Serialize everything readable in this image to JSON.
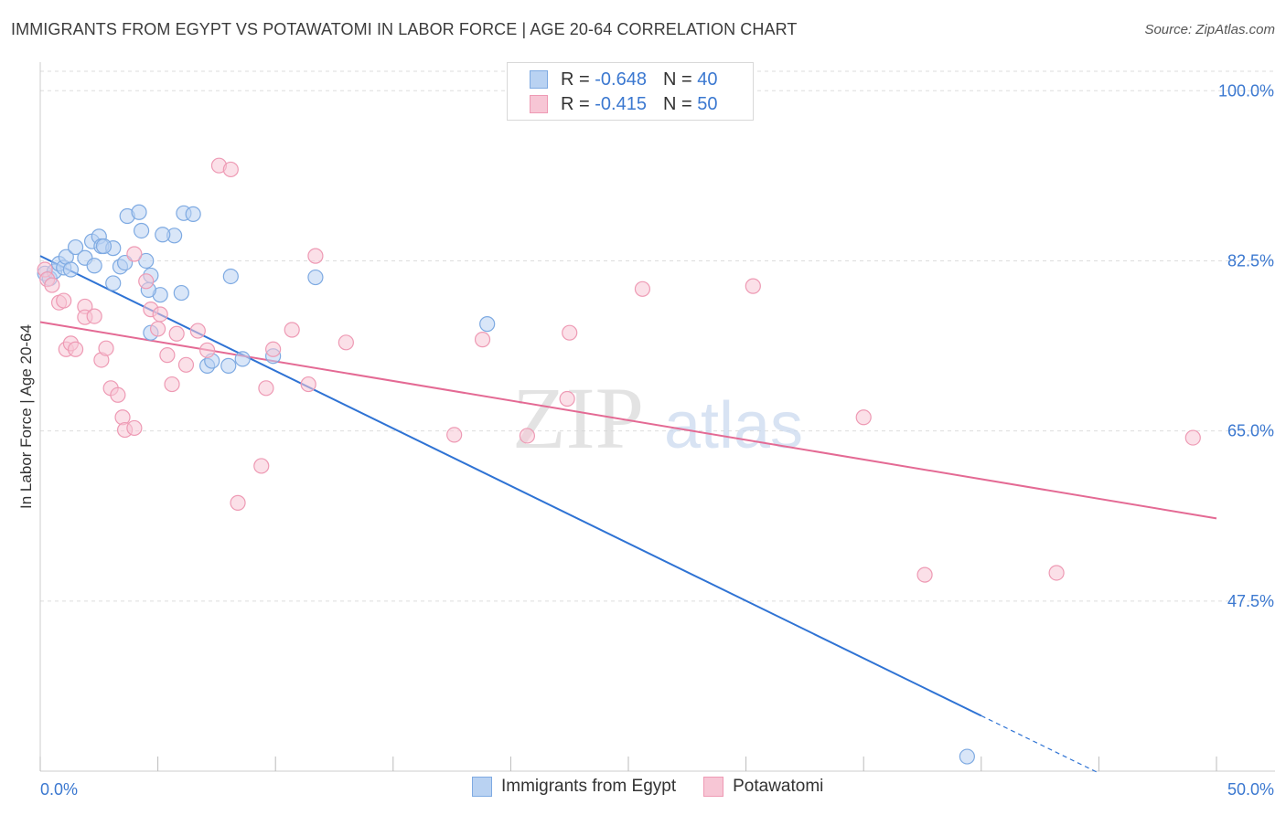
{
  "header": {
    "title": "IMMIGRANTS FROM EGYPT VS POTAWATOMI IN LABOR FORCE | AGE 20-64 CORRELATION CHART",
    "source": "Source: ZipAtlas.com"
  },
  "watermark": {
    "zip": "ZIP",
    "atlas": "atlas"
  },
  "colors": {
    "blue_fill": "#b9d2f2",
    "blue_stroke": "#7eaae2",
    "blue_line": "#2f73d4",
    "pink_fill": "#f7c6d5",
    "pink_stroke": "#ee9ab4",
    "pink_line": "#e46a94",
    "axis_label": "#3b78d0",
    "grid": "#dddddd"
  },
  "legend": {
    "rows": [
      {
        "r_label": "R =",
        "r_value": "-0.648",
        "n_label": "N =",
        "n_value": "40"
      },
      {
        "r_label": "R =",
        "r_value": "-0.415",
        "n_label": "N =",
        "n_value": "50"
      }
    ]
  },
  "bottom_legend": [
    "Immigrants from Egypt",
    "Potawatomi"
  ],
  "chart_data": {
    "type": "scatter",
    "title": "IMMIGRANTS FROM EGYPT VS POTAWATOMI IN LABOR FORCE | AGE 20-64 CORRELATION CHART",
    "xlabel": "",
    "ylabel": "In Labor Force | Age 20-64",
    "xlim": [
      0,
      50
    ],
    "ylim": [
      30,
      102
    ],
    "x_tick_labels": [
      {
        "value": 0,
        "label": "0.0%"
      },
      {
        "value": 50,
        "label": "50.0%"
      }
    ],
    "y_tick_labels": [
      {
        "value": 100,
        "label": "100.0%"
      },
      {
        "value": 82.5,
        "label": "82.5%"
      },
      {
        "value": 65,
        "label": "65.0%"
      },
      {
        "value": 47.5,
        "label": "47.5%"
      }
    ],
    "grid": true,
    "series": [
      {
        "name": "Immigrants from Egypt",
        "color": "#7eaae2",
        "R": -0.648,
        "N": 40,
        "trend": {
          "x0": 0,
          "y0": 83.0,
          "x1": 40,
          "y1": 35.7,
          "dashed_to_x": 45,
          "dashed_to_y": 29.8
        },
        "points": [
          [
            0.2,
            81.2
          ],
          [
            0.4,
            80.7
          ],
          [
            0.6,
            81.4
          ],
          [
            0.8,
            82.2
          ],
          [
            1.0,
            81.8
          ],
          [
            1.1,
            82.9
          ],
          [
            1.3,
            81.6
          ],
          [
            1.5,
            83.9
          ],
          [
            1.9,
            82.8
          ],
          [
            2.2,
            84.5
          ],
          [
            2.3,
            82.0
          ],
          [
            2.5,
            85.0
          ],
          [
            2.6,
            84.0
          ],
          [
            3.1,
            83.8
          ],
          [
            3.4,
            81.9
          ],
          [
            3.6,
            82.3
          ],
          [
            3.7,
            87.1
          ],
          [
            2.7,
            84.0
          ],
          [
            4.2,
            87.5
          ],
          [
            4.3,
            85.6
          ],
          [
            4.7,
            81.0
          ],
          [
            5.1,
            79.0
          ],
          [
            5.7,
            85.1
          ],
          [
            5.2,
            85.2
          ],
          [
            6.1,
            87.4
          ],
          [
            6.5,
            87.3
          ],
          [
            6.0,
            79.2
          ],
          [
            4.6,
            79.5
          ],
          [
            4.7,
            75.1
          ],
          [
            7.1,
            71.7
          ],
          [
            7.3,
            72.2
          ],
          [
            8.0,
            71.7
          ],
          [
            8.6,
            72.4
          ],
          [
            9.9,
            72.7
          ],
          [
            11.7,
            80.8
          ],
          [
            19.0,
            76.0
          ],
          [
            4.5,
            82.5
          ],
          [
            3.1,
            80.2
          ],
          [
            8.1,
            80.9
          ],
          [
            39.4,
            31.5
          ]
        ]
      },
      {
        "name": "Potawatomi",
        "color": "#ee9ab4",
        "R": -0.415,
        "N": 50,
        "trend": {
          "x0": 0,
          "y0": 76.2,
          "x1": 50,
          "y1": 56.0
        },
        "points": [
          [
            0.2,
            81.6
          ],
          [
            0.3,
            80.6
          ],
          [
            0.5,
            80.0
          ],
          [
            0.8,
            78.2
          ],
          [
            1.0,
            78.4
          ],
          [
            1.1,
            73.4
          ],
          [
            1.3,
            74.0
          ],
          [
            1.5,
            73.4
          ],
          [
            1.9,
            77.8
          ],
          [
            1.9,
            76.7
          ],
          [
            2.3,
            76.8
          ],
          [
            2.6,
            72.3
          ],
          [
            2.8,
            73.5
          ],
          [
            3.0,
            69.4
          ],
          [
            3.3,
            68.7
          ],
          [
            3.5,
            66.4
          ],
          [
            3.6,
            65.1
          ],
          [
            4.0,
            65.3
          ],
          [
            4.0,
            83.2
          ],
          [
            4.5,
            80.4
          ],
          [
            4.7,
            77.5
          ],
          [
            5.0,
            75.5
          ],
          [
            5.1,
            77.0
          ],
          [
            5.4,
            72.8
          ],
          [
            5.6,
            69.8
          ],
          [
            5.8,
            75.0
          ],
          [
            6.2,
            71.8
          ],
          [
            6.7,
            75.3
          ],
          [
            7.1,
            73.3
          ],
          [
            7.6,
            92.3
          ],
          [
            8.1,
            91.9
          ],
          [
            8.4,
            57.6
          ],
          [
            9.4,
            61.4
          ],
          [
            9.6,
            69.4
          ],
          [
            9.9,
            73.4
          ],
          [
            10.7,
            75.4
          ],
          [
            11.4,
            69.8
          ],
          [
            11.7,
            83.0
          ],
          [
            13.0,
            74.1
          ],
          [
            17.6,
            64.6
          ],
          [
            18.8,
            74.4
          ],
          [
            20.7,
            64.5
          ],
          [
            22.5,
            75.1
          ],
          [
            22.4,
            68.3
          ],
          [
            25.6,
            79.6
          ],
          [
            30.3,
            79.9
          ],
          [
            35.0,
            66.4
          ],
          [
            37.6,
            50.2
          ],
          [
            43.2,
            50.4
          ],
          [
            49.0,
            64.3
          ]
        ]
      }
    ]
  }
}
